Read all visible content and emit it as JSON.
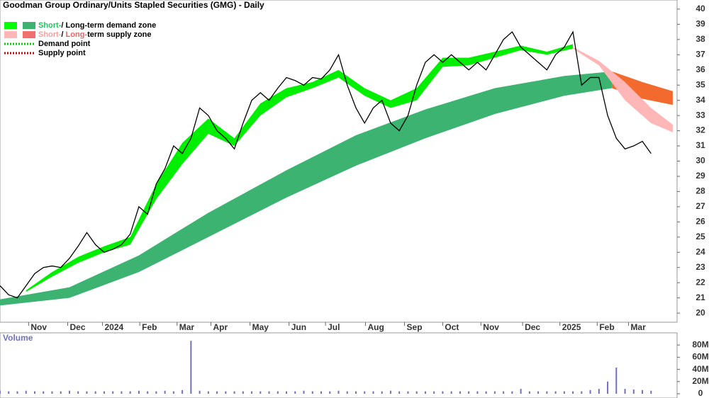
{
  "chart_data": [
    {
      "type": "line",
      "title": "Goodman Group Ordinary/Units Stapled Securities (GMG) - Daily",
      "legend": [
        {
          "texts": [
            "Short-",
            "/ Long-term demand zone"
          ],
          "text_colors": [
            "#22c55e",
            "#000000"
          ],
          "colors": [
            "#00ff00",
            "#3cb371"
          ]
        },
        {
          "texts": [
            "Short-",
            "/ ",
            "Long-",
            "term supply zone"
          ],
          "text_colors": [
            "#f4a0a0",
            "#000000",
            "#f06060",
            "#000000"
          ],
          "colors": [
            "#ffb6b6",
            "#f07070"
          ]
        },
        {
          "texts": [
            "Demand point"
          ],
          "text_colors": [
            "#000000"
          ],
          "colors": [
            "#00cc00"
          ]
        },
        {
          "texts": [
            "Supply point"
          ],
          "text_colors": [
            "#000000"
          ],
          "colors": [
            "#cc0000"
          ]
        }
      ],
      "x": [
        0,
        1,
        2,
        3,
        4,
        5,
        6,
        7,
        8,
        9,
        10,
        11,
        12,
        13,
        14,
        15,
        16,
        17,
        18,
        19,
        20,
        21,
        22,
        23,
        24,
        25,
        26,
        27,
        28,
        29,
        30,
        31,
        32,
        33,
        34,
        35,
        36,
        37,
        38,
        39,
        40,
        41,
        42,
        43,
        44,
        45,
        46,
        47,
        48,
        49,
        50,
        51,
        52,
        53,
        54,
        55,
        56,
        57,
        58,
        59,
        60,
        61,
        62,
        63,
        64,
        65,
        66,
        67,
        68,
        69,
        70,
        71,
        72,
        73,
        74,
        75
      ],
      "xlim": [
        0,
        78
      ],
      "xticks": [
        {
          "value": 3.3,
          "label": "Nov"
        },
        {
          "value": 7.8,
          "label": "Dec"
        },
        {
          "value": 11.8,
          "label": "2024"
        },
        {
          "value": 16.1,
          "label": "Feb"
        },
        {
          "value": 20.4,
          "label": "Mar"
        },
        {
          "value": 24.3,
          "label": "Apr"
        },
        {
          "value": 28.8,
          "label": "May"
        },
        {
          "value": 33.3,
          "label": "Jun"
        },
        {
          "value": 37.5,
          "label": "Jul"
        },
        {
          "value": 42.1,
          "label": "Aug"
        },
        {
          "value": 46.6,
          "label": "Sep"
        },
        {
          "value": 51,
          "label": "Oct"
        },
        {
          "value": 55.4,
          "label": "Nov"
        },
        {
          "value": 60.2,
          "label": "Dec"
        },
        {
          "value": 64.5,
          "label": "2025"
        },
        {
          "value": 68.8,
          "label": "Feb"
        },
        {
          "value": 72.4,
          "label": "Mar"
        }
      ],
      "ylim": [
        19.4,
        40.6
      ],
      "yticks": [
        20,
        21,
        22,
        23,
        24,
        25,
        26,
        27,
        28,
        29,
        30,
        31,
        32,
        33,
        34,
        35,
        36,
        37,
        38,
        39,
        40
      ],
      "series": [
        {
          "color": "#000000",
          "values": [
            21.8,
            21.2,
            21.0,
            21.8,
            22.6,
            23.0,
            23.1,
            23.0,
            23.6,
            24.4,
            25.3,
            24.5,
            24.0,
            24.2,
            24.5,
            25.2,
            27.0,
            26.5,
            28.5,
            29.5,
            31.0,
            30.5,
            31.5,
            33.5,
            33.0,
            32.0,
            31.5,
            30.8,
            32.5,
            34.0,
            34.5,
            34.0,
            34.8,
            35.5,
            35.3,
            35.0,
            35.5,
            35.4,
            36.0,
            37.0,
            35.0,
            33.5,
            32.5,
            33.5,
            34.0,
            32.5,
            32.0,
            33.0,
            35.0,
            36.5,
            37.0,
            36.5,
            37.0,
            36.5,
            36.0,
            36.5,
            36.0,
            37.0,
            38.0,
            38.5,
            37.5,
            37.0,
            36.5,
            36.0,
            37.0,
            37.5,
            38.5,
            35.0,
            35.5,
            35.5,
            33.0,
            31.5,
            30.8,
            31.0,
            31.3,
            30.5
          ]
        }
      ],
      "zones": [
        {
          "color": "#3cb371",
          "x": [
            0,
            8,
            16,
            24,
            33,
            41,
            49,
            57,
            65,
            70.5
          ],
          "lower": [
            20.5,
            21.0,
            22.7,
            25.0,
            27.6,
            29.7,
            31.5,
            33.1,
            34.3,
            34.8
          ],
          "upper": [
            20.9,
            21.7,
            23.8,
            26.6,
            29.4,
            31.7,
            33.4,
            34.8,
            35.6,
            35.9
          ]
        },
        {
          "color": "#f26a2e",
          "x": [
            70.5,
            74,
            77.5
          ],
          "lower": [
            34.8,
            34.1,
            33.7
          ],
          "upper": [
            35.9,
            35.2,
            34.6
          ]
        },
        {
          "color": "#00ee00",
          "x": [
            3,
            6,
            9,
            12,
            15,
            18,
            21,
            24,
            27,
            30,
            33,
            36,
            39,
            42,
            45,
            48,
            51,
            54,
            57,
            60,
            63,
            66
          ],
          "lower": [
            21.4,
            22.4,
            23.3,
            24.0,
            24.5,
            27.5,
            29.8,
            31.8,
            31.0,
            33.0,
            34.2,
            34.8,
            35.5,
            34.3,
            33.5,
            34.0,
            36.2,
            36.3,
            36.8,
            37.3,
            37.0,
            37.4
          ],
          "upper": [
            21.5,
            22.7,
            23.7,
            24.4,
            25.0,
            28.5,
            31.2,
            32.8,
            31.5,
            33.8,
            34.8,
            35.2,
            36.0,
            34.8,
            34.0,
            34.8,
            36.8,
            36.8,
            37.2,
            37.6,
            37.2,
            37.7
          ]
        },
        {
          "color": "#ffb6b6",
          "x": [
            66,
            69,
            72,
            75,
            77.5
          ],
          "lower": [
            37.4,
            36.3,
            34.0,
            32.5,
            31.9
          ],
          "upper": [
            37.5,
            36.6,
            35.2,
            33.5,
            32.4
          ]
        }
      ]
    },
    {
      "type": "bar",
      "title": "Volume",
      "color": "#7070c0",
      "ylim": [
        0,
        93
      ],
      "yticks": [
        {
          "value": 0,
          "label": "0"
        },
        {
          "value": 20,
          "label": "20M"
        },
        {
          "value": 40,
          "label": "40M"
        },
        {
          "value": 60,
          "label": "60M"
        },
        {
          "value": 80,
          "label": "80M"
        }
      ],
      "values": [
        5,
        4,
        4,
        5,
        4,
        4,
        4,
        4,
        5,
        4,
        4,
        4,
        4,
        4,
        4,
        4,
        5,
        4,
        4,
        5,
        4,
        6,
        87,
        5,
        4,
        4,
        4,
        4,
        4,
        4,
        4,
        4,
        4,
        4,
        4,
        5,
        4,
        4,
        4,
        5,
        4,
        4,
        4,
        4,
        4,
        5,
        4,
        4,
        4,
        4,
        4,
        4,
        4,
        4,
        4,
        4,
        4,
        4,
        4,
        4,
        8,
        4,
        4,
        4,
        4,
        4,
        4,
        4,
        6,
        8,
        20,
        43,
        8,
        7,
        6,
        5
      ]
    }
  ]
}
